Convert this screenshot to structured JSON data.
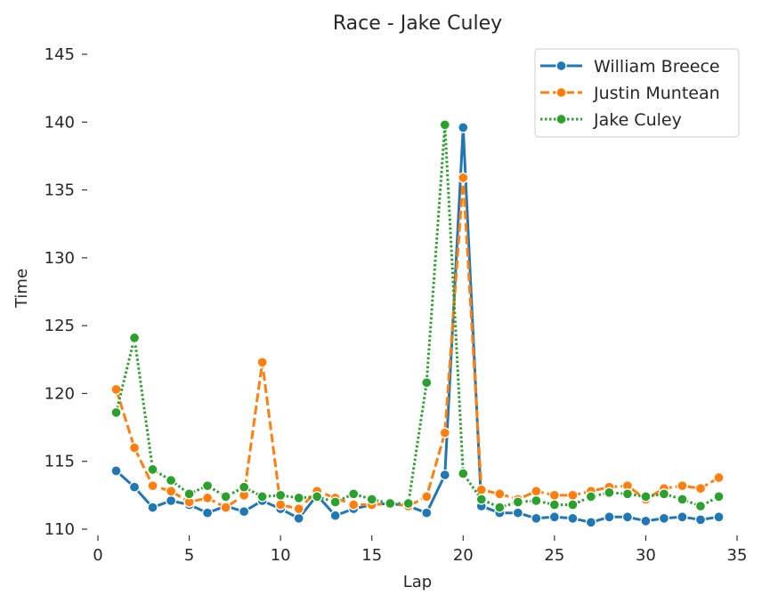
{
  "chart_data": {
    "type": "line",
    "title": "Race - Jake Culey",
    "xlabel": "Lap",
    "ylabel": "Time",
    "xlim": [
      0,
      35
    ],
    "ylim": [
      110,
      145
    ],
    "xticks": [
      0,
      5,
      10,
      15,
      20,
      25,
      30,
      35
    ],
    "yticks": [
      110,
      115,
      120,
      125,
      130,
      135,
      140,
      145
    ],
    "grid": false,
    "legend_position": "top-right",
    "x": [
      1,
      2,
      3,
      4,
      5,
      6,
      7,
      8,
      9,
      10,
      11,
      12,
      13,
      14,
      15,
      16,
      17,
      18,
      19,
      20,
      21,
      22,
      23,
      24,
      25,
      26,
      27,
      28,
      29,
      30,
      31,
      32,
      33,
      34
    ],
    "series": [
      {
        "name": "William Breece",
        "color": "#1f77b4",
        "line_style": "solid",
        "values": [
          114.3,
          113.1,
          111.6,
          112.1,
          111.8,
          111.2,
          111.7,
          111.3,
          112.1,
          111.5,
          110.8,
          112.5,
          111.0,
          111.5,
          111.8,
          111.9,
          111.7,
          111.2,
          114.0,
          139.6,
          111.7,
          111.2,
          111.2,
          110.8,
          110.9,
          110.8,
          110.5,
          110.9,
          110.9,
          110.6,
          110.8,
          110.9,
          110.7,
          110.9
        ]
      },
      {
        "name": "Justin Muntean",
        "color": "#ff7f0e",
        "line_style": "dashed",
        "values": [
          120.3,
          116.0,
          113.2,
          112.8,
          112.0,
          112.3,
          111.6,
          112.5,
          122.3,
          111.8,
          111.5,
          112.8,
          112.3,
          111.8,
          111.8,
          111.9,
          111.7,
          112.4,
          117.1,
          135.9,
          112.9,
          112.6,
          112.2,
          112.8,
          112.5,
          112.5,
          112.8,
          113.1,
          113.2,
          112.2,
          113.0,
          113.2,
          113.0,
          113.8
        ]
      },
      {
        "name": "Jake Culey",
        "color": "#2ca02c",
        "line_style": "dotted",
        "values": [
          118.6,
          124.1,
          114.4,
          113.6,
          112.6,
          113.2,
          112.4,
          113.1,
          112.4,
          112.5,
          112.3,
          112.4,
          112.0,
          112.6,
          112.2,
          111.9,
          111.9,
          120.8,
          139.8,
          114.1,
          112.2,
          111.6,
          112.0,
          112.1,
          111.8,
          111.8,
          112.4,
          112.7,
          112.6,
          112.4,
          112.6,
          112.2,
          111.7,
          112.4
        ]
      }
    ]
  }
}
